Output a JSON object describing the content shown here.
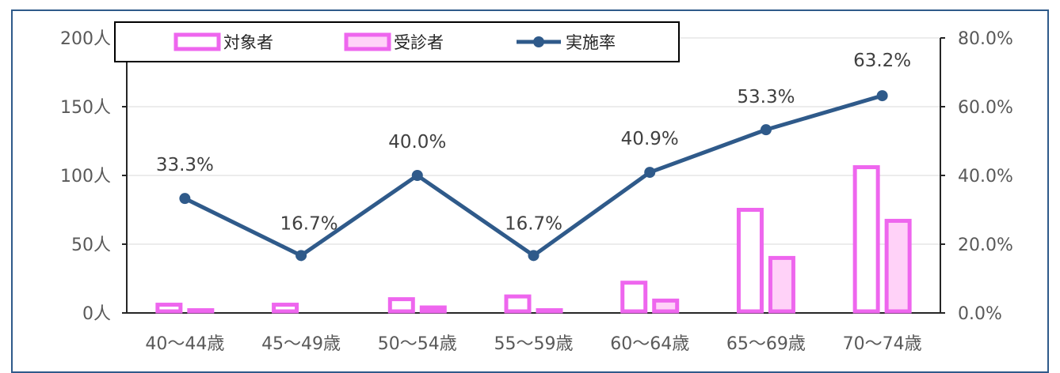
{
  "chart_data": {
    "type": "bar",
    "categories": [
      "40～44歳",
      "45～49歳",
      "50～54歳",
      "55～59歳",
      "60～64歳",
      "65～69歳",
      "70～74歳"
    ],
    "series": [
      {
        "name": "対象者",
        "kind": "bar",
        "axis": "left",
        "values": [
          6,
          6,
          10,
          12,
          22,
          75,
          106
        ]
      },
      {
        "name": "受診者",
        "kind": "bar",
        "axis": "left",
        "values": [
          2,
          1,
          4,
          2,
          9,
          40,
          67
        ]
      },
      {
        "name": "実施率",
        "kind": "line",
        "axis": "right",
        "values": [
          33.3,
          16.7,
          40.0,
          16.7,
          40.9,
          53.3,
          63.2
        ]
      }
    ],
    "data_labels": [
      "33.3%",
      "16.7%",
      "40.0%",
      "16.7%",
      "40.9%",
      "53.3%",
      "63.2%"
    ],
    "y_left": {
      "range": [
        0,
        200
      ],
      "ticks": [
        "0人",
        "50人",
        "100人",
        "150人",
        "200人"
      ]
    },
    "y_right": {
      "range": [
        0,
        80
      ],
      "ticks": [
        "0.0%",
        "20.0%",
        "40.0%",
        "60.0%",
        "80.0%"
      ]
    },
    "legend": {
      "placement": "top-left",
      "items": [
        "対象者",
        "受診者",
        "実施率"
      ]
    },
    "colors": {
      "bar_border": "#ee66ee",
      "bar1_fill": "#ffffff",
      "bar2_fill": "#ffd2f8",
      "line": "#2f5a8a",
      "axis": "#262626",
      "frame": "#2f5a8a"
    }
  }
}
